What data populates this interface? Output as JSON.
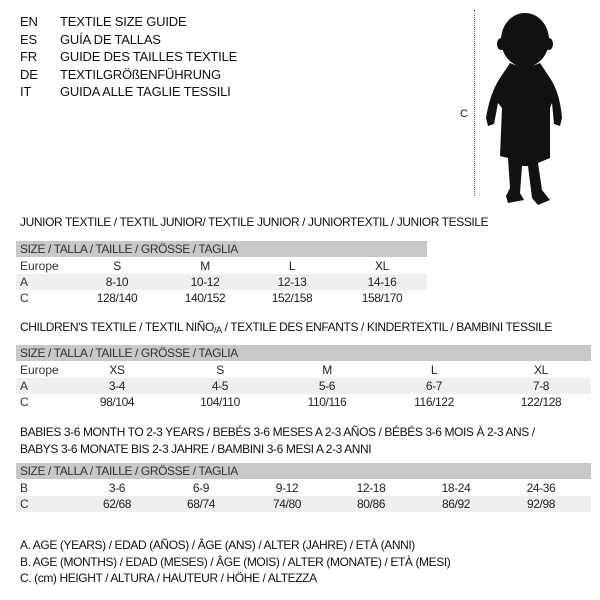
{
  "header": {
    "langs": [
      {
        "code": "EN",
        "title": "TEXTILE SIZE GUIDE"
      },
      {
        "code": "ES",
        "title": "GUÍA DE TALLAS"
      },
      {
        "code": "FR",
        "title": "GUIDE DES TAILLES TEXTILE"
      },
      {
        "code": "DE",
        "title": "TEXTILGRÖßENFÜHRUNG"
      },
      {
        "code": "IT",
        "title": "GUIDA ALLE TAGLIE TESSILI"
      }
    ]
  },
  "figure": {
    "label": "C"
  },
  "size_header": "SIZE / TALLA / TAILLE / GRÖSSE / TAGLIA",
  "junior": {
    "title": "JUNIOR TEXTILE / TEXTIL JUNIOR/ TEXTILE JUNIOR / JUNIORTEXTIL / JUNIOR TESSILE",
    "rows": [
      {
        "label": "Europe",
        "values": [
          "S",
          "M",
          "L",
          "XL"
        ]
      },
      {
        "label": "A",
        "values": [
          "8-10",
          "10-12",
          "12-13",
          "14-16"
        ]
      },
      {
        "label": "C",
        "values": [
          "128/140",
          "140/152",
          "152/158",
          "158/170"
        ]
      }
    ]
  },
  "children": {
    "title_a": "CHILDREN'S TEXTILE / TEXTIL NIÑO",
    "title_sub": "/A",
    "title_b": " / TEXTILE DES ENFANTS / KINDERTEXTIL / BAMBINI TESSILE",
    "rows": [
      {
        "label": "Europe",
        "values": [
          "XS",
          "S",
          "M",
          "L",
          "XL"
        ]
      },
      {
        "label": "A",
        "values": [
          "3-4",
          "4-5",
          "5-6",
          "6-7",
          "7-8"
        ]
      },
      {
        "label": "C",
        "values": [
          "98/104",
          "104/110",
          "110/116",
          "116/122",
          "122/128"
        ]
      }
    ]
  },
  "babies": {
    "title_line1": "BABIES 3-6 MONTH TO 2-3 YEARS / BEBÉS 3-6 MESES A 2-3 AÑOS / BÉBÉS 3-6 MOIS À 2-3 ANS /",
    "title_line2": "BABYS 3-6 MONATE BIS 2-3 JAHRE / BAMBINI 3-6 MESI A 2-3 ANNI",
    "rows": [
      {
        "label": "B",
        "values": [
          "3-6",
          "6-9",
          "9-12",
          "12-18",
          "18-24",
          "24-36"
        ]
      },
      {
        "label": "C",
        "values": [
          "62/68",
          "68/74",
          "74/80",
          "80/86",
          "86/92",
          "92/98"
        ]
      }
    ]
  },
  "legend": [
    "A. AGE (YEARS) / EDAD (AÑOS) / ÂGE (ANS) / ALTER (JAHRE) / ETÀ (ANNI)",
    "B. AGE (MONTHS) / EDAD (MESES) / ÂGE (MOIS) / ALTER (MONATE) / ETÀ (MESI)",
    "C. (cm) HEIGHT / ALTURA / HAUTEUR / HÖHE / ALTEZZA"
  ]
}
